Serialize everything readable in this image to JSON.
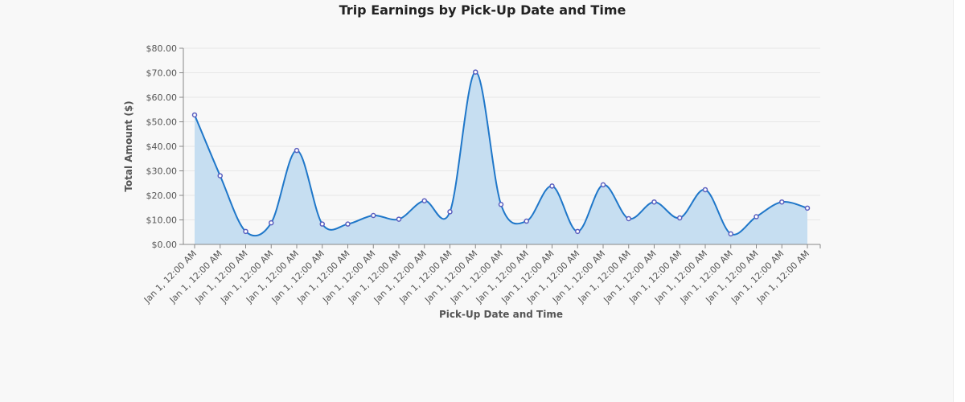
{
  "colors": {
    "line": "#1f77c9",
    "area": "#c6def1",
    "point_stroke": "#5b5fbf",
    "point_fill": "#ffffff"
  },
  "chart_data": {
    "type": "area",
    "title": "Trip Earnings by Pick-Up Date and Time",
    "xlabel": "Pick-Up Date and Time",
    "ylabel": "Total Amount ($)",
    "ylim": [
      0,
      80
    ],
    "y_ticks": [
      "$0.00",
      "$10.00",
      "$20.00",
      "$30.00",
      "$40.00",
      "$50.00",
      "$60.00",
      "$70.00",
      "$80.00"
    ],
    "categories": [
      "Jan 1, 12:00 AM",
      "Jan 1, 12:00 AM",
      "Jan 1, 12:00 AM",
      "Jan 1, 12:00 AM",
      "Jan 1, 12:00 AM",
      "Jan 1, 12:00 AM",
      "Jan 1, 12:00 AM",
      "Jan 1, 12:00 AM",
      "Jan 1, 12:00 AM",
      "Jan 1, 12:00 AM",
      "Jan 1, 12:00 AM",
      "Jan 1, 12:00 AM",
      "Jan 1, 12:00 AM",
      "Jan 1, 12:00 AM",
      "Jan 1, 12:00 AM",
      "Jan 1, 12:00 AM",
      "Jan 1, 12:00 AM",
      "Jan 1, 12:00 AM",
      "Jan 1, 12:00 AM",
      "Jan 1, 12:00 AM",
      "Jan 1, 12:00 AM",
      "Jan 1, 12:00 AM",
      "Jan 1, 12:00 AM",
      "Jan 1, 12:00 AM",
      "Jan 1, 12:00 AM"
    ],
    "values": [
      52.8,
      28.0,
      5.3,
      8.8,
      38.3,
      8.3,
      8.3,
      11.8,
      10.3,
      17.8,
      13.3,
      70.3,
      16.3,
      9.5,
      23.8,
      5.3,
      24.3,
      10.5,
      17.3,
      10.8,
      22.3,
      4.3,
      11.3,
      17.3,
      14.8
    ],
    "grid": true,
    "legend": "none"
  }
}
